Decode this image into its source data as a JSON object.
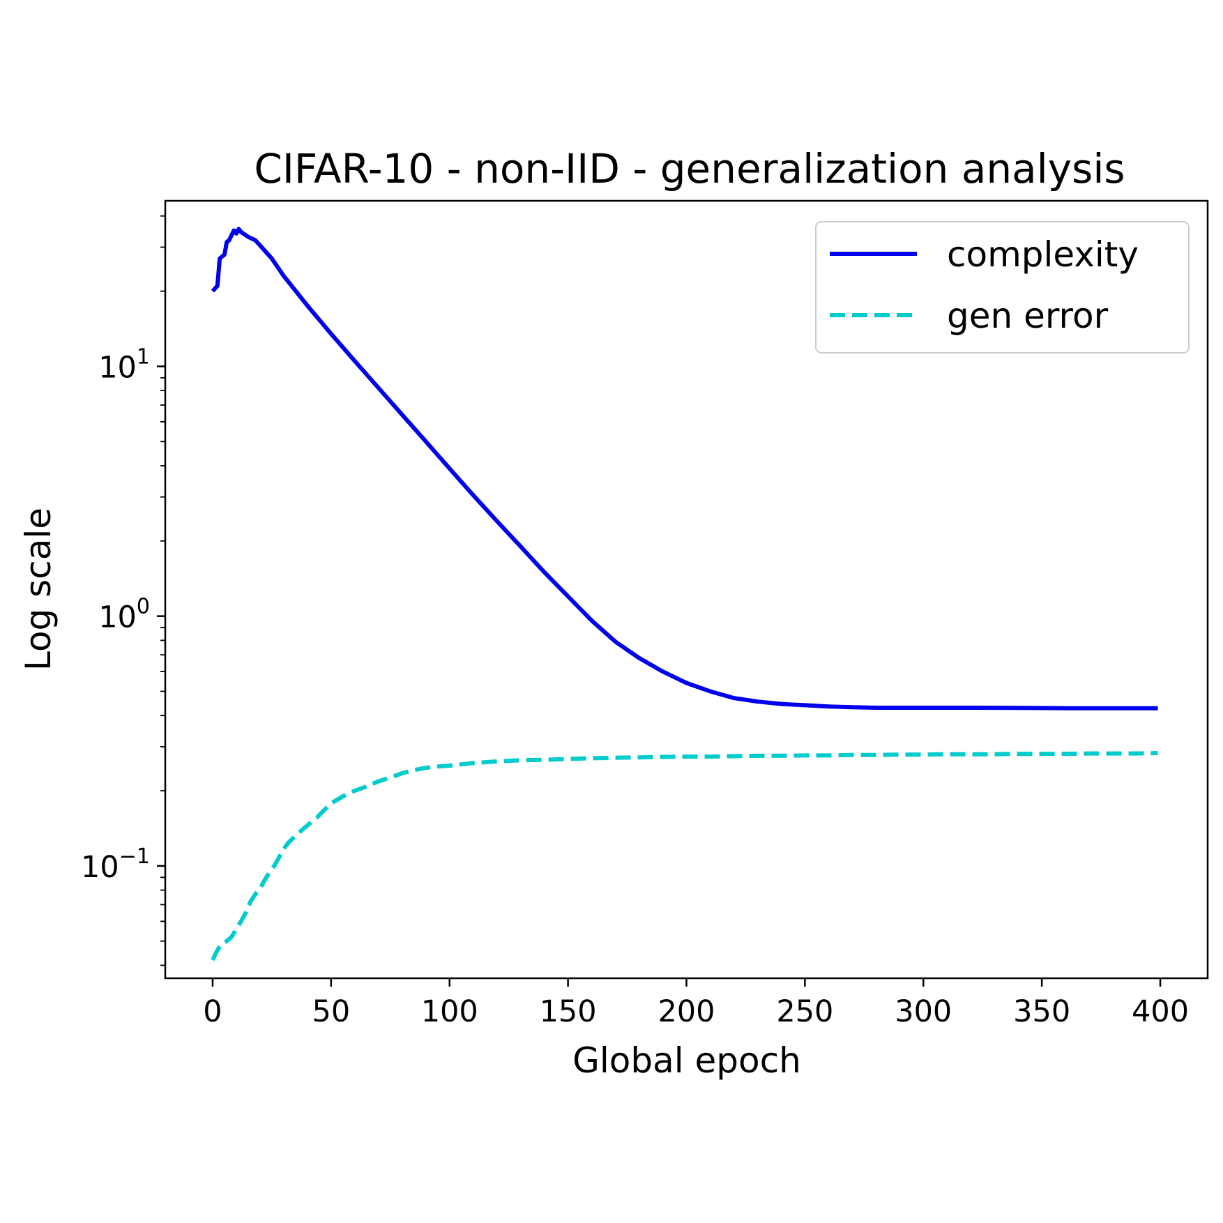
{
  "chart_data": {
    "type": "line",
    "title": "CIFAR-10 - non-IID - generalization analysis",
    "xlabel": "Global epoch",
    "ylabel": "Log scale",
    "yscale": "log",
    "xlim": [
      -20,
      420
    ],
    "ylim": [
      0.0355,
      46
    ],
    "grid": false,
    "legend_position": "upper-right",
    "xticks": [
      {
        "value": 0,
        "label": "0"
      },
      {
        "value": 50,
        "label": "50"
      },
      {
        "value": 100,
        "label": "100"
      },
      {
        "value": 150,
        "label": "150"
      },
      {
        "value": 200,
        "label": "200"
      },
      {
        "value": 250,
        "label": "250"
      },
      {
        "value": 300,
        "label": "300"
      },
      {
        "value": 350,
        "label": "350"
      },
      {
        "value": 400,
        "label": "400"
      }
    ],
    "yticks": [
      {
        "value": 0.1,
        "base": "10",
        "exp": "−1"
      },
      {
        "value": 1,
        "base": "10",
        "exp": "0"
      },
      {
        "value": 10,
        "base": "10",
        "exp": "1"
      }
    ],
    "series": [
      {
        "name": "complexity",
        "color": "#0000ee",
        "style": "solid",
        "points": [
          [
            0,
            20
          ],
          [
            1,
            20.5
          ],
          [
            2,
            21
          ],
          [
            3,
            27
          ],
          [
            4,
            27.5
          ],
          [
            5,
            28
          ],
          [
            6,
            31.5
          ],
          [
            7,
            32
          ],
          [
            8,
            33.5
          ],
          [
            9,
            35
          ],
          [
            10,
            34
          ],
          [
            11,
            35.5
          ],
          [
            12,
            34.5
          ],
          [
            13,
            34
          ],
          [
            15,
            33
          ],
          [
            18,
            32
          ],
          [
            20,
            30.5
          ],
          [
            25,
            27
          ],
          [
            30,
            23
          ],
          [
            40,
            17.5
          ],
          [
            50,
            13.5
          ],
          [
            60,
            10.5
          ],
          [
            70,
            8.2
          ],
          [
            80,
            6.4
          ],
          [
            90,
            5.0
          ],
          [
            100,
            3.9
          ],
          [
            110,
            3.05
          ],
          [
            120,
            2.4
          ],
          [
            130,
            1.9
          ],
          [
            140,
            1.5
          ],
          [
            150,
            1.2
          ],
          [
            160,
            0.96
          ],
          [
            170,
            0.79
          ],
          [
            180,
            0.68
          ],
          [
            190,
            0.6
          ],
          [
            200,
            0.54
          ],
          [
            210,
            0.5
          ],
          [
            220,
            0.47
          ],
          [
            230,
            0.455
          ],
          [
            240,
            0.445
          ],
          [
            250,
            0.44
          ],
          [
            260,
            0.435
          ],
          [
            270,
            0.432
          ],
          [
            280,
            0.43
          ],
          [
            300,
            0.43
          ],
          [
            320,
            0.43
          ],
          [
            340,
            0.429
          ],
          [
            360,
            0.428
          ],
          [
            380,
            0.428
          ],
          [
            399,
            0.428
          ]
        ]
      },
      {
        "name": "gen error",
        "color": "#00cccc",
        "style": "dashed",
        "points": [
          [
            0,
            0.042
          ],
          [
            2,
            0.046
          ],
          [
            4,
            0.049
          ],
          [
            6,
            0.05
          ],
          [
            8,
            0.052
          ],
          [
            10,
            0.056
          ],
          [
            12,
            0.06
          ],
          [
            14,
            0.065
          ],
          [
            16,
            0.072
          ],
          [
            18,
            0.077
          ],
          [
            20,
            0.081
          ],
          [
            22,
            0.088
          ],
          [
            24,
            0.094
          ],
          [
            26,
            0.1
          ],
          [
            28,
            0.108
          ],
          [
            30,
            0.117
          ],
          [
            32,
            0.124
          ],
          [
            35,
            0.132
          ],
          [
            38,
            0.14
          ],
          [
            41,
            0.148
          ],
          [
            44,
            0.156
          ],
          [
            47,
            0.167
          ],
          [
            50,
            0.178
          ],
          [
            55,
            0.19
          ],
          [
            60,
            0.2
          ],
          [
            65,
            0.208
          ],
          [
            70,
            0.218
          ],
          [
            75,
            0.226
          ],
          [
            80,
            0.235
          ],
          [
            85,
            0.242
          ],
          [
            90,
            0.247
          ],
          [
            95,
            0.25
          ],
          [
            100,
            0.252
          ],
          [
            105,
            0.255
          ],
          [
            110,
            0.258
          ],
          [
            120,
            0.262
          ],
          [
            130,
            0.265
          ],
          [
            140,
            0.266
          ],
          [
            150,
            0.268
          ],
          [
            160,
            0.27
          ],
          [
            170,
            0.271
          ],
          [
            180,
            0.272
          ],
          [
            190,
            0.273
          ],
          [
            200,
            0.274
          ],
          [
            210,
            0.274
          ],
          [
            220,
            0.275
          ],
          [
            230,
            0.276
          ],
          [
            240,
            0.276
          ],
          [
            250,
            0.277
          ],
          [
            260,
            0.277
          ],
          [
            270,
            0.278
          ],
          [
            280,
            0.278
          ],
          [
            290,
            0.279
          ],
          [
            300,
            0.279
          ],
          [
            310,
            0.28
          ],
          [
            320,
            0.28
          ],
          [
            330,
            0.28
          ],
          [
            340,
            0.281
          ],
          [
            350,
            0.281
          ],
          [
            360,
            0.281
          ],
          [
            370,
            0.282
          ],
          [
            380,
            0.282
          ],
          [
            390,
            0.282
          ],
          [
            399,
            0.283
          ]
        ]
      }
    ]
  }
}
